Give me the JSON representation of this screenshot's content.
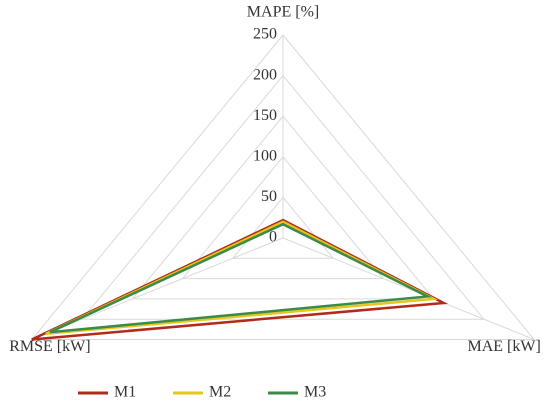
{
  "chart_data": {
    "type": "radar",
    "axes": [
      "MAPE [%]",
      "MAE [kW]",
      "RMSE [kW]"
    ],
    "rlim": [
      0,
      250
    ],
    "rticks": [
      0,
      50,
      100,
      150,
      200,
      250
    ],
    "grid": true,
    "series": [
      {
        "name": "M1",
        "color": "#b22a1a",
        "values": [
          22,
          160,
          250
        ]
      },
      {
        "name": "M2",
        "color": "#e6c619",
        "values": [
          20,
          150,
          236
        ]
      },
      {
        "name": "M3",
        "color": "#3a8a4a",
        "values": [
          17,
          144,
          232
        ]
      }
    ],
    "legend": "bottom"
  }
}
